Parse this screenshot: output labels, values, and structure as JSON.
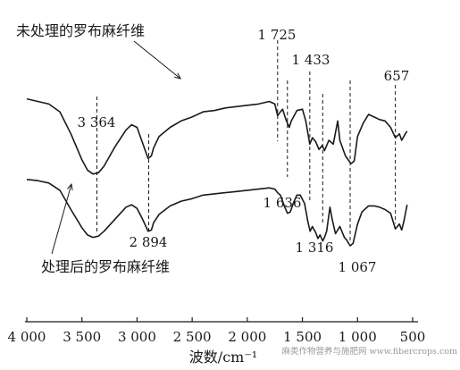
{
  "chart_data": {
    "type": "line",
    "xlabel": "波数/cm⁻¹",
    "xlim": [
      4000,
      500
    ],
    "x_ticks": [
      {
        "value": 4000,
        "label": "4 000"
      },
      {
        "value": 3500,
        "label": "3 500"
      },
      {
        "value": 3000,
        "label": "3 000"
      },
      {
        "value": 2500,
        "label": "2 500"
      },
      {
        "value": 2000,
        "label": "2 000"
      },
      {
        "value": 1500,
        "label": "1 500"
      },
      {
        "value": 1000,
        "label": "1 000"
      },
      {
        "value": 500,
        "label": "500"
      }
    ],
    "series": [
      {
        "name": "未处理的罗布麻纤维",
        "points": [
          [
            4000,
            0.72
          ],
          [
            3900,
            0.7
          ],
          [
            3800,
            0.68
          ],
          [
            3700,
            0.62
          ],
          [
            3600,
            0.45
          ],
          [
            3500,
            0.25
          ],
          [
            3450,
            0.17
          ],
          [
            3400,
            0.14
          ],
          [
            3350,
            0.15
          ],
          [
            3300,
            0.2
          ],
          [
            3200,
            0.35
          ],
          [
            3100,
            0.48
          ],
          [
            3050,
            0.52
          ],
          [
            3000,
            0.5
          ],
          [
            2950,
            0.38
          ],
          [
            2900,
            0.26
          ],
          [
            2870,
            0.28
          ],
          [
            2850,
            0.34
          ],
          [
            2800,
            0.43
          ],
          [
            2700,
            0.5
          ],
          [
            2600,
            0.55
          ],
          [
            2500,
            0.58
          ],
          [
            2400,
            0.62
          ],
          [
            2300,
            0.63
          ],
          [
            2200,
            0.65
          ],
          [
            2100,
            0.66
          ],
          [
            2000,
            0.67
          ],
          [
            1900,
            0.68
          ],
          [
            1800,
            0.7
          ],
          [
            1750,
            0.68
          ],
          [
            1725,
            0.59
          ],
          [
            1700,
            0.62
          ],
          [
            1680,
            0.64
          ],
          [
            1650,
            0.56
          ],
          [
            1620,
            0.5
          ],
          [
            1600,
            0.55
          ],
          [
            1550,
            0.63
          ],
          [
            1500,
            0.64
          ],
          [
            1470,
            0.55
          ],
          [
            1433,
            0.37
          ],
          [
            1410,
            0.42
          ],
          [
            1380,
            0.39
          ],
          [
            1350,
            0.33
          ],
          [
            1320,
            0.36
          ],
          [
            1300,
            0.32
          ],
          [
            1260,
            0.4
          ],
          [
            1220,
            0.37
          ],
          [
            1180,
            0.55
          ],
          [
            1160,
            0.4
          ],
          [
            1110,
            0.28
          ],
          [
            1060,
            0.22
          ],
          [
            1030,
            0.24
          ],
          [
            1000,
            0.43
          ],
          [
            950,
            0.53
          ],
          [
            900,
            0.6
          ],
          [
            850,
            0.58
          ],
          [
            800,
            0.56
          ],
          [
            750,
            0.55
          ],
          [
            700,
            0.5
          ],
          [
            657,
            0.42
          ],
          [
            620,
            0.45
          ],
          [
            600,
            0.4
          ],
          [
            560,
            0.46
          ],
          [
            550,
            0.47
          ]
        ]
      },
      {
        "name": "处理后的罗布麻纤维",
        "points": [
          [
            4000,
            0.55
          ],
          [
            3900,
            0.54
          ],
          [
            3800,
            0.52
          ],
          [
            3700,
            0.46
          ],
          [
            3600,
            0.3
          ],
          [
            3500,
            0.15
          ],
          [
            3450,
            0.09
          ],
          [
            3400,
            0.07
          ],
          [
            3350,
            0.08
          ],
          [
            3300,
            0.12
          ],
          [
            3200,
            0.22
          ],
          [
            3100,
            0.32
          ],
          [
            3050,
            0.34
          ],
          [
            3000,
            0.31
          ],
          [
            2950,
            0.22
          ],
          [
            2900,
            0.12
          ],
          [
            2870,
            0.13
          ],
          [
            2850,
            0.19
          ],
          [
            2800,
            0.26
          ],
          [
            2700,
            0.33
          ],
          [
            2600,
            0.37
          ],
          [
            2500,
            0.39
          ],
          [
            2400,
            0.42
          ],
          [
            2300,
            0.43
          ],
          [
            2200,
            0.44
          ],
          [
            2100,
            0.45
          ],
          [
            2000,
            0.46
          ],
          [
            1900,
            0.47
          ],
          [
            1800,
            0.48
          ],
          [
            1750,
            0.47
          ],
          [
            1725,
            0.44
          ],
          [
            1700,
            0.42
          ],
          [
            1660,
            0.32
          ],
          [
            1636,
            0.27
          ],
          [
            1610,
            0.28
          ],
          [
            1580,
            0.36
          ],
          [
            1550,
            0.42
          ],
          [
            1520,
            0.42
          ],
          [
            1480,
            0.35
          ],
          [
            1450,
            0.2
          ],
          [
            1430,
            0.12
          ],
          [
            1410,
            0.16
          ],
          [
            1380,
            0.11
          ],
          [
            1360,
            0.06
          ],
          [
            1340,
            0.09
          ],
          [
            1316,
            0.04
          ],
          [
            1300,
            0.07
          ],
          [
            1280,
            0.12
          ],
          [
            1250,
            0.32
          ],
          [
            1230,
            0.22
          ],
          [
            1200,
            0.1
          ],
          [
            1160,
            0.16
          ],
          [
            1120,
            0.07
          ],
          [
            1100,
            0.05
          ],
          [
            1067,
            0.0
          ],
          [
            1040,
            0.02
          ],
          [
            1000,
            0.18
          ],
          [
            960,
            0.28
          ],
          [
            900,
            0.33
          ],
          [
            850,
            0.33
          ],
          [
            800,
            0.32
          ],
          [
            750,
            0.3
          ],
          [
            700,
            0.27
          ],
          [
            657,
            0.14
          ],
          [
            620,
            0.18
          ],
          [
            600,
            0.13
          ],
          [
            580,
            0.2
          ],
          [
            550,
            0.34
          ]
        ]
      }
    ],
    "peak_annotations": [
      {
        "label": "3 364",
        "x": 3364,
        "series": 1
      },
      {
        "label": "2 894",
        "x": 2894,
        "series": 1
      },
      {
        "label": "1 725",
        "x": 1725,
        "series": 0
      },
      {
        "label": "1 433",
        "x": 1433,
        "series": 0
      },
      {
        "label": "657",
        "x": 657,
        "series": 0
      },
      {
        "label": "1 636",
        "x": 1636,
        "series": 1
      },
      {
        "label": "1 316",
        "x": 1316,
        "series": 1
      },
      {
        "label": "1 067",
        "x": 1067,
        "series": 1
      }
    ],
    "watermark": "麻类作物营养与施肥网 www.fibercrops.com"
  }
}
